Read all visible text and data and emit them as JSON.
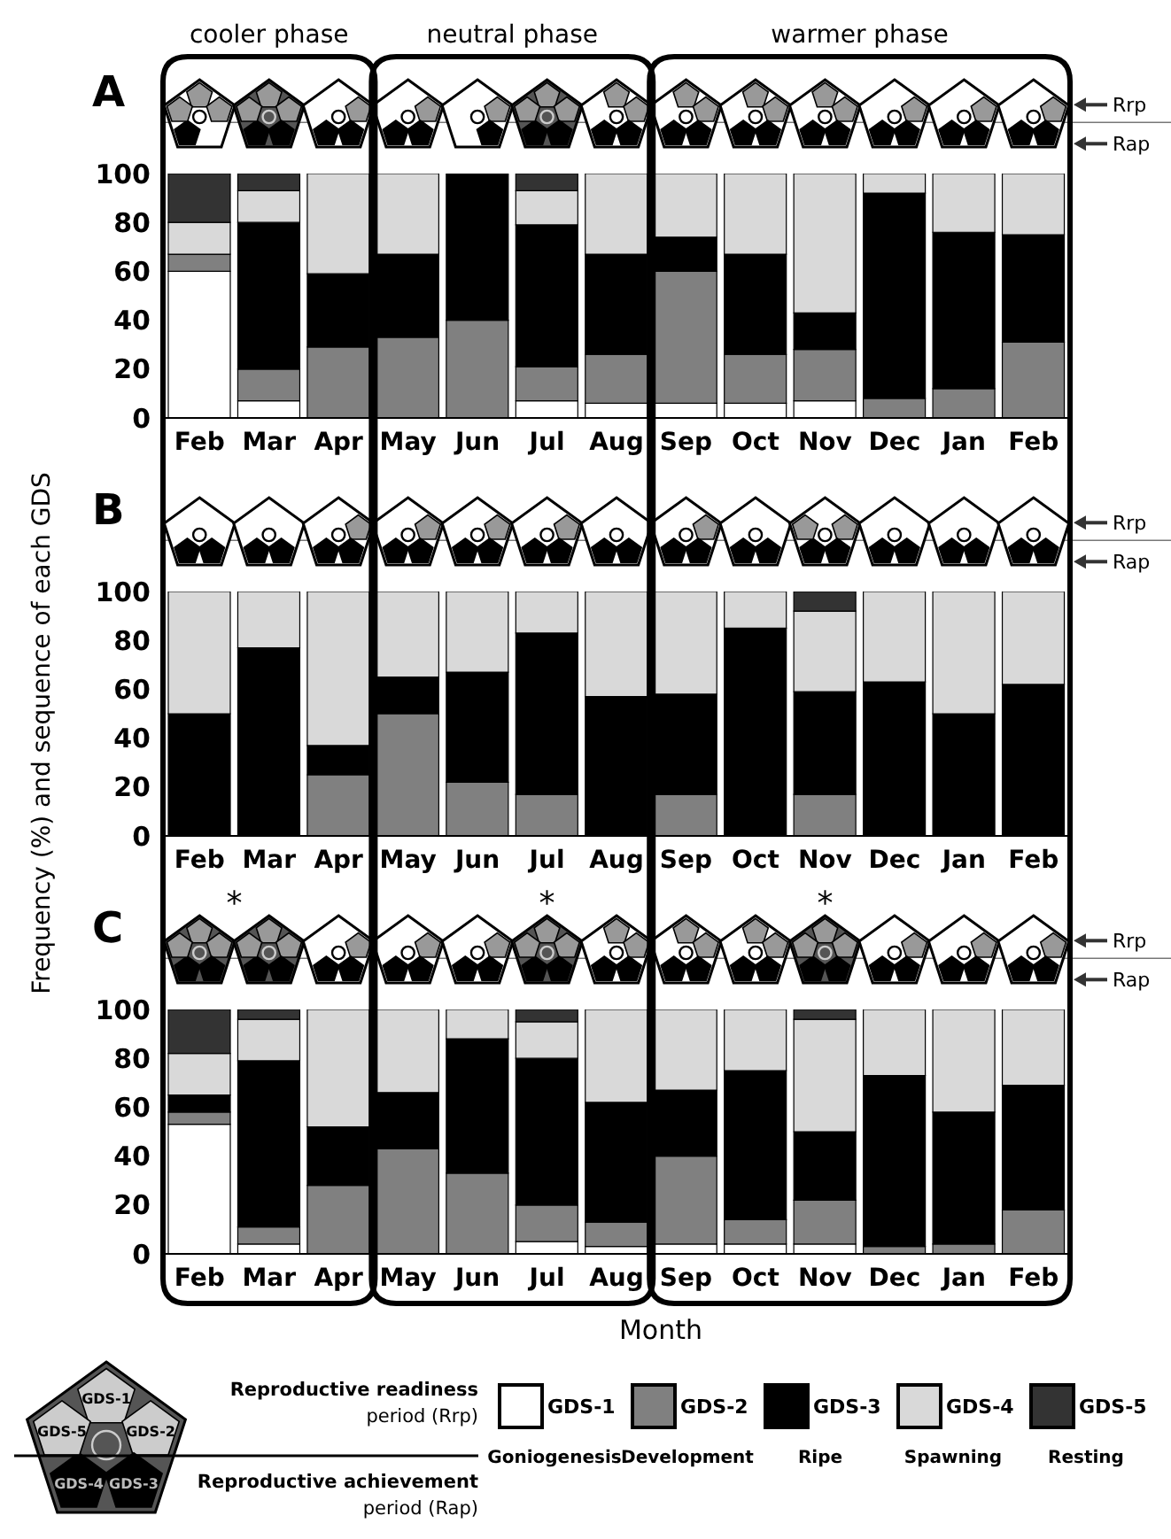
{
  "chart_data": [
    {
      "type": "bar",
      "title": "A",
      "stacked": true,
      "categories": [
        "Feb",
        "Mar",
        "Apr",
        "May",
        "Jun",
        "Jul",
        "Aug",
        "Sep",
        "Oct",
        "Nov",
        "Dec",
        "Jan",
        "Feb"
      ],
      "ylim": [
        0,
        100
      ],
      "yticks": [
        0,
        20,
        40,
        60,
        80,
        100
      ],
      "legend": false,
      "series": [
        {
          "color": "#ffffff",
          "values": [
            60,
            7,
            0,
            0,
            0,
            7,
            6,
            6,
            6,
            7,
            0,
            0,
            0
          ]
        },
        {
          "color": "#808080",
          "values": [
            7,
            13,
            29,
            33,
            40,
            14,
            20,
            54,
            20,
            21,
            8,
            12,
            31
          ]
        },
        {
          "color": "#000000",
          "values": [
            0,
            60,
            30,
            34,
            60,
            58,
            41,
            14,
            41,
            15,
            84,
            64,
            44
          ]
        },
        {
          "color": "#d9d9d9",
          "values": [
            13,
            13,
            41,
            33,
            0,
            14,
            33,
            26,
            33,
            57,
            8,
            24,
            25
          ]
        },
        {
          "color": "#333333",
          "values": [
            20,
            7,
            0,
            0,
            0,
            7,
            0,
            0,
            0,
            0,
            0,
            0,
            0
          ]
        }
      ],
      "annotations": [
        "cooler phase",
        "neutral phase",
        "warmer phase",
        "Rrp",
        "Rap"
      ]
    },
    {
      "type": "bar",
      "title": "B",
      "stacked": true,
      "categories": [
        "Feb",
        "Mar",
        "Apr",
        "May",
        "Jun",
        "Jul",
        "Aug",
        "Sep",
        "Oct",
        "Nov",
        "Dec",
        "Jan",
        "Feb"
      ],
      "ylim": [
        0,
        100
      ],
      "yticks": [
        0,
        20,
        40,
        60,
        80,
        100
      ],
      "legend": false,
      "ylabel": "Frequency (%) and sequence of each GDS",
      "series": [
        {
          "color": "#ffffff",
          "values": [
            0,
            0,
            0,
            0,
            0,
            0,
            0,
            0,
            0,
            0,
            0,
            0,
            0
          ]
        },
        {
          "color": "#808080",
          "values": [
            0,
            0,
            25,
            50,
            22,
            17,
            0,
            17,
            0,
            17,
            0,
            0,
            0
          ]
        },
        {
          "color": "#000000",
          "values": [
            50,
            77,
            12,
            15,
            45,
            66,
            57,
            41,
            85,
            42,
            63,
            50,
            62
          ]
        },
        {
          "color": "#d9d9d9",
          "values": [
            50,
            23,
            63,
            35,
            33,
            17,
            43,
            42,
            15,
            33,
            37,
            50,
            38
          ]
        },
        {
          "color": "#333333",
          "values": [
            0,
            0,
            0,
            0,
            0,
            0,
            0,
            0,
            0,
            8,
            0,
            0,
            0
          ]
        }
      ],
      "annotations": [
        "Rrp",
        "Rap"
      ]
    },
    {
      "type": "bar",
      "title": "C",
      "stacked": true,
      "categories": [
        "Feb",
        "Mar",
        "Apr",
        "May",
        "Jun",
        "Jul",
        "Aug",
        "Sep",
        "Oct",
        "Nov",
        "Dec",
        "Jan",
        "Feb"
      ],
      "ylim": [
        0,
        100
      ],
      "yticks": [
        0,
        20,
        40,
        60,
        80,
        100
      ],
      "legend": "bottom",
      "xlabel": "Month",
      "series": [
        {
          "name": "GDS-1",
          "color": "#ffffff",
          "values": [
            53,
            4,
            0,
            0,
            0,
            5,
            3,
            4,
            4,
            4,
            0,
            0,
            0
          ]
        },
        {
          "name": "GDS-2",
          "color": "#808080",
          "values": [
            5,
            7,
            28,
            43,
            33,
            15,
            10,
            36,
            10,
            18,
            3,
            4,
            18
          ]
        },
        {
          "name": "GDS-3",
          "color": "#000000",
          "values": [
            7,
            68,
            24,
            23,
            55,
            60,
            49,
            27,
            61,
            28,
            70,
            54,
            51
          ]
        },
        {
          "name": "GDS-4",
          "color": "#d9d9d9",
          "values": [
            17,
            17,
            48,
            34,
            12,
            15,
            38,
            33,
            25,
            46,
            27,
            42,
            31
          ]
        },
        {
          "name": "GDS-5",
          "color": "#333333",
          "values": [
            18,
            4,
            0,
            0,
            0,
            5,
            0,
            0,
            0,
            4,
            0,
            0,
            0
          ]
        }
      ],
      "annotations": [
        "*",
        "*",
        "*",
        "Rrp",
        "Rap",
        "Reproductive readiness period (Rrp)",
        "Reproductive achievement period (Rap)",
        "Goniogenesis",
        "Development",
        "Ripe",
        "Spawning",
        "Resting",
        "GDS-1",
        "GDS-5",
        "GDS-2",
        "GDS-4",
        "GDS-3"
      ]
    }
  ]
}
